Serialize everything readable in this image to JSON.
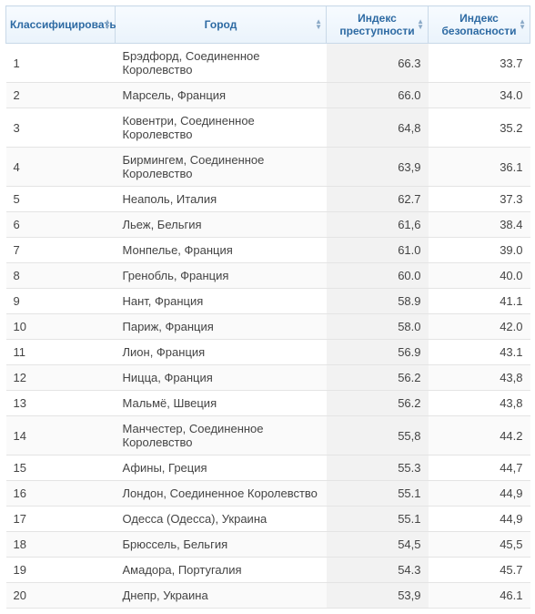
{
  "columns": {
    "rank": "Классифицировать",
    "city": "Город",
    "crime": "Индекс преступности",
    "safety": "Индекс безопасности"
  },
  "rows": [
    {
      "rank": "1",
      "city": "Брэдфорд, Соединенное Королевство",
      "crime": "66.3",
      "safety": "33.7"
    },
    {
      "rank": "2",
      "city": "Марсель, Франция",
      "crime": "66.0",
      "safety": "34.0"
    },
    {
      "rank": "3",
      "city": "Ковентри, Соединенное Королевство",
      "crime": "64,8",
      "safety": "35.2"
    },
    {
      "rank": "4",
      "city": "Бирмингем, Соединенное Королевство",
      "crime": "63,9",
      "safety": "36.1"
    },
    {
      "rank": "5",
      "city": "Неаполь, Италия",
      "crime": "62.7",
      "safety": "37.3"
    },
    {
      "rank": "6",
      "city": "Льеж, Бельгия",
      "crime": "61,6",
      "safety": "38.4"
    },
    {
      "rank": "7",
      "city": "Монпелье, Франция",
      "crime": "61.0",
      "safety": "39.0"
    },
    {
      "rank": "8",
      "city": "Гренобль, Франция",
      "crime": "60.0",
      "safety": "40.0"
    },
    {
      "rank": "9",
      "city": "Нант, Франция",
      "crime": "58.9",
      "safety": "41.1"
    },
    {
      "rank": "10",
      "city": "Париж, Франция",
      "crime": "58.0",
      "safety": "42.0"
    },
    {
      "rank": "11",
      "city": "Лион, Франция",
      "crime": "56.9",
      "safety": "43.1"
    },
    {
      "rank": "12",
      "city": "Ницца, Франция",
      "crime": "56.2",
      "safety": "43,8"
    },
    {
      "rank": "13",
      "city": "Мальмё, Швеция",
      "crime": "56.2",
      "safety": "43,8"
    },
    {
      "rank": "14",
      "city": "Манчестер, Соединенное Королевство",
      "crime": "55,8",
      "safety": "44.2"
    },
    {
      "rank": "15",
      "city": "Афины, Греция",
      "crime": "55.3",
      "safety": "44,7"
    },
    {
      "rank": "16",
      "city": "Лондон, Соединенное Королевство",
      "crime": "55.1",
      "safety": "44,9"
    },
    {
      "rank": "17",
      "city": "Одесса (Одесса), Украина",
      "crime": "55.1",
      "safety": "44,9"
    },
    {
      "rank": "18",
      "city": "Брюссель, Бельгия",
      "crime": "54,5",
      "safety": "45,5"
    },
    {
      "rank": "19",
      "city": "Амадора, Португалия",
      "crime": "54.3",
      "safety": "45.7"
    },
    {
      "rank": "20",
      "city": "Днепр, Украина",
      "crime": "53,9",
      "safety": "46.1"
    }
  ]
}
